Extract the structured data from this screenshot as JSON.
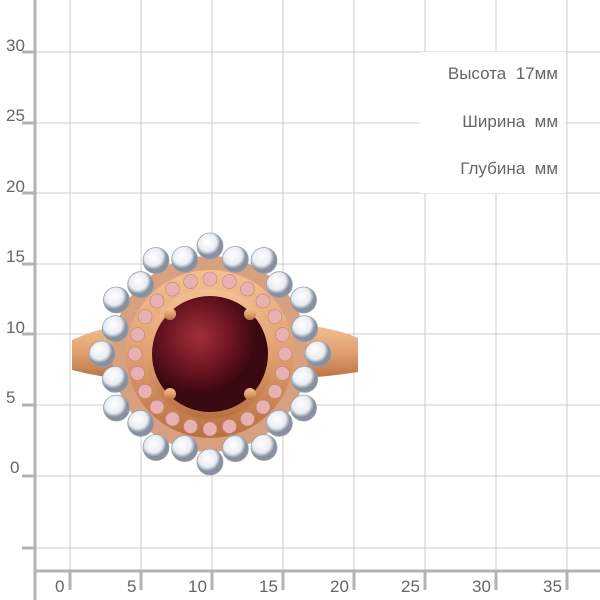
{
  "dimensions": {
    "height_label": "Высота",
    "height_value": "17мм",
    "width_label": "Ширина",
    "width_value": "мм",
    "depth_label": "Глубина",
    "depth_value": "мм"
  },
  "y_axis_labels": [
    "30",
    "25",
    "20",
    "15",
    "10",
    "5",
    "0"
  ],
  "x_axis_labels": [
    "0",
    "5",
    "10",
    "15",
    "20",
    "25",
    "30",
    "35"
  ],
  "colors": {
    "grid": "#cccccc",
    "axis": "#b3b3b3",
    "gold": "#e0a070",
    "garnet": "#6a1420",
    "pink_stone": "#e8b0b0",
    "white_stone": "#e8ecf2"
  }
}
